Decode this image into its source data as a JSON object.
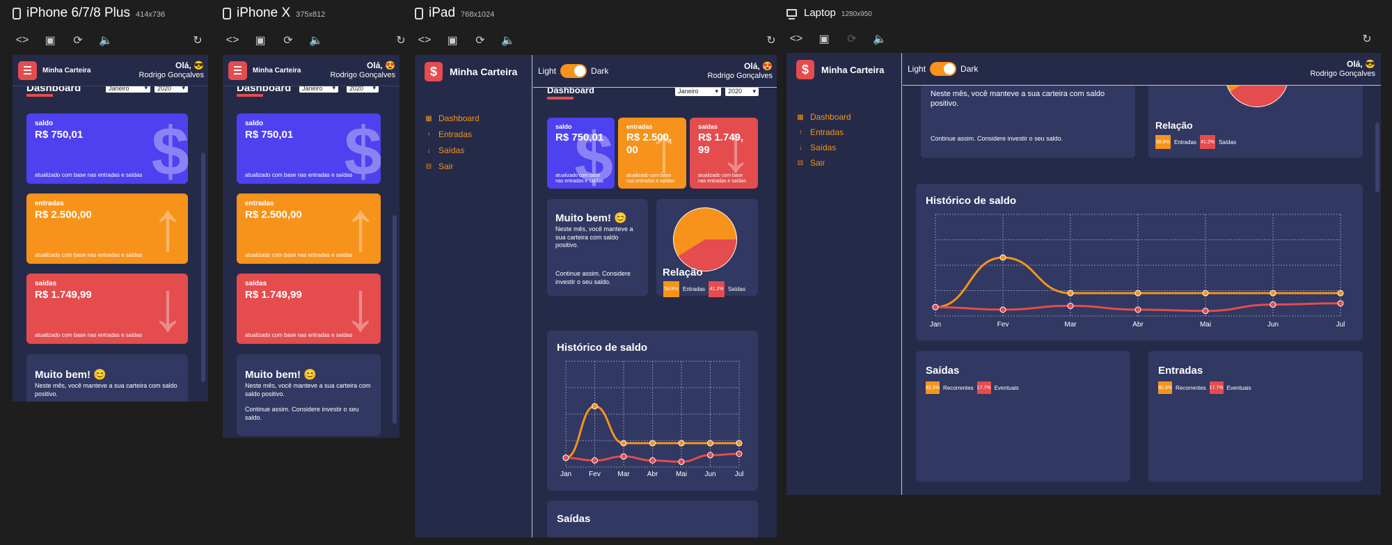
{
  "devices": [
    {
      "name": "iPhone 6/7/8 Plus",
      "size": "414x736"
    },
    {
      "name": "iPhone X",
      "size": "375x812"
    },
    {
      "name": "iPad",
      "size": "768x1024"
    },
    {
      "name": "Laptop",
      "size": "1280x950"
    }
  ],
  "toolbar_icons": [
    "code-icon",
    "camera-icon",
    "rotate-icon",
    "volume-icon",
    "refresh-icon"
  ],
  "app": {
    "brand": "Minha Carteira",
    "hello": "Olá, 😎",
    "hello_alt": "Olá, 😍",
    "user": "Rodrigo Gonçalves",
    "theme_light": "Light",
    "theme_dark": "Dark",
    "nav": [
      {
        "label": "Dashboard",
        "icon": "grid-icon"
      },
      {
        "label": "Entradas",
        "icon": "arrow-up-icon"
      },
      {
        "label": "Saídas",
        "icon": "arrow-down-icon"
      },
      {
        "label": "Sair",
        "icon": "logout-icon"
      }
    ],
    "dashboard_title": "Dashboard",
    "month_select": "Janeiro",
    "year_select": "2020",
    "cards": {
      "saldo": {
        "title": "saldo",
        "value": "R$ 750,01",
        "value_wrap": "R$ 750,01",
        "footer": "atualizado com base nas entradas e saídas",
        "color": "#4e41f0"
      },
      "entradas": {
        "title": "entradas",
        "value": "R$ 2.500,00",
        "value_wrap": "R$ 2.500,\n00",
        "footer": "atualizado com base nas entradas e saídas",
        "color": "#f7931b"
      },
      "saidas": {
        "title": "saídas",
        "value": "R$ 1.749,99",
        "value_wrap": "R$ 1.749,\n99",
        "footer": "atualizado com base nas entradas e saídas",
        "color": "#e44c4e"
      }
    },
    "message": {
      "title": "Muito bem! 😊",
      "description": "Neste mês, você manteve a sua carteira com saldo positivo.",
      "footer": "Continue assim. Considere investir o seu saldo."
    },
    "relation": {
      "title": "Relação",
      "items": [
        {
          "percent": "58.8%",
          "label": "Entradas",
          "color": "#f7931b"
        },
        {
          "percent": "41.2%",
          "label": "Saídas",
          "color": "#e44c4e"
        }
      ]
    },
    "history_title": "Histórico de saldo",
    "saidas_box": {
      "title": "Saídas",
      "items": [
        {
          "percent": "82.3%",
          "label": "Recorrentes",
          "color": "#f7931b"
        },
        {
          "percent": "17.7%",
          "label": "Eventuais",
          "color": "#e44c4e"
        }
      ]
    },
    "entradas_box": {
      "title": "Entradas",
      "items": [
        {
          "percent": "82.3%",
          "label": "Recorrentes",
          "color": "#f7931b"
        },
        {
          "percent": "17.7%",
          "label": "Eventuais",
          "color": "#e44c4e"
        }
      ]
    }
  },
  "chart_data": {
    "type": "line",
    "title": "Histórico de saldo",
    "categories": [
      "Jan",
      "Fev",
      "Mar",
      "Abr",
      "Mai",
      "Jun",
      "Jul"
    ],
    "ylim": [
      0,
      4
    ],
    "grid": true,
    "series": [
      {
        "color": "#f7931b",
        "values": [
          0.35,
          2.3,
          0.9,
          0.9,
          0.9,
          0.9,
          0.9
        ]
      },
      {
        "color": "#e44c4e",
        "values": [
          0.35,
          0.25,
          0.4,
          0.25,
          0.2,
          0.45,
          0.5
        ]
      }
    ]
  }
}
